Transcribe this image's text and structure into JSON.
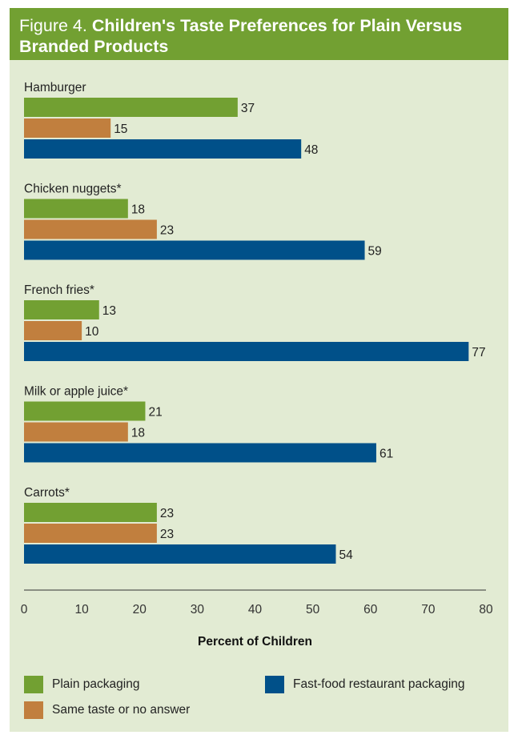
{
  "title": {
    "figure_number": "Figure 4.",
    "text": "Children's Taste Preferences for Plain Versus Branded Products"
  },
  "colors": {
    "header_bg": "#72a032",
    "panel_bg": "#e2ebd3",
    "plain": "#72a032",
    "same": "#c17f3e",
    "fastfood": "#005089"
  },
  "chart_data": {
    "type": "bar",
    "orientation": "horizontal",
    "categories": [
      "Hamburger",
      "Chicken nuggets*",
      "French fries*",
      "Milk or apple juice*",
      "Carrots*"
    ],
    "series": [
      {
        "name": "Plain packaging",
        "values": [
          37,
          18,
          13,
          21,
          23
        ]
      },
      {
        "name": "Same taste or no answer",
        "values": [
          15,
          23,
          10,
          18,
          23
        ]
      },
      {
        "name": "Fast-food restaurant packaging",
        "values": [
          48,
          59,
          77,
          61,
          54
        ]
      }
    ],
    "xlabel": "Percent of Children",
    "xlim": [
      0,
      80
    ],
    "xticks": [
      0,
      10,
      20,
      30,
      40,
      50,
      60,
      70,
      80
    ],
    "grid": false,
    "legend_placement": "bottom"
  },
  "legend": [
    {
      "label": "Plain packaging",
      "color": "#72a032"
    },
    {
      "label": "Fast-food restaurant packaging",
      "color": "#005089"
    },
    {
      "label": "Same taste or no answer",
      "color": "#c17f3e"
    }
  ]
}
